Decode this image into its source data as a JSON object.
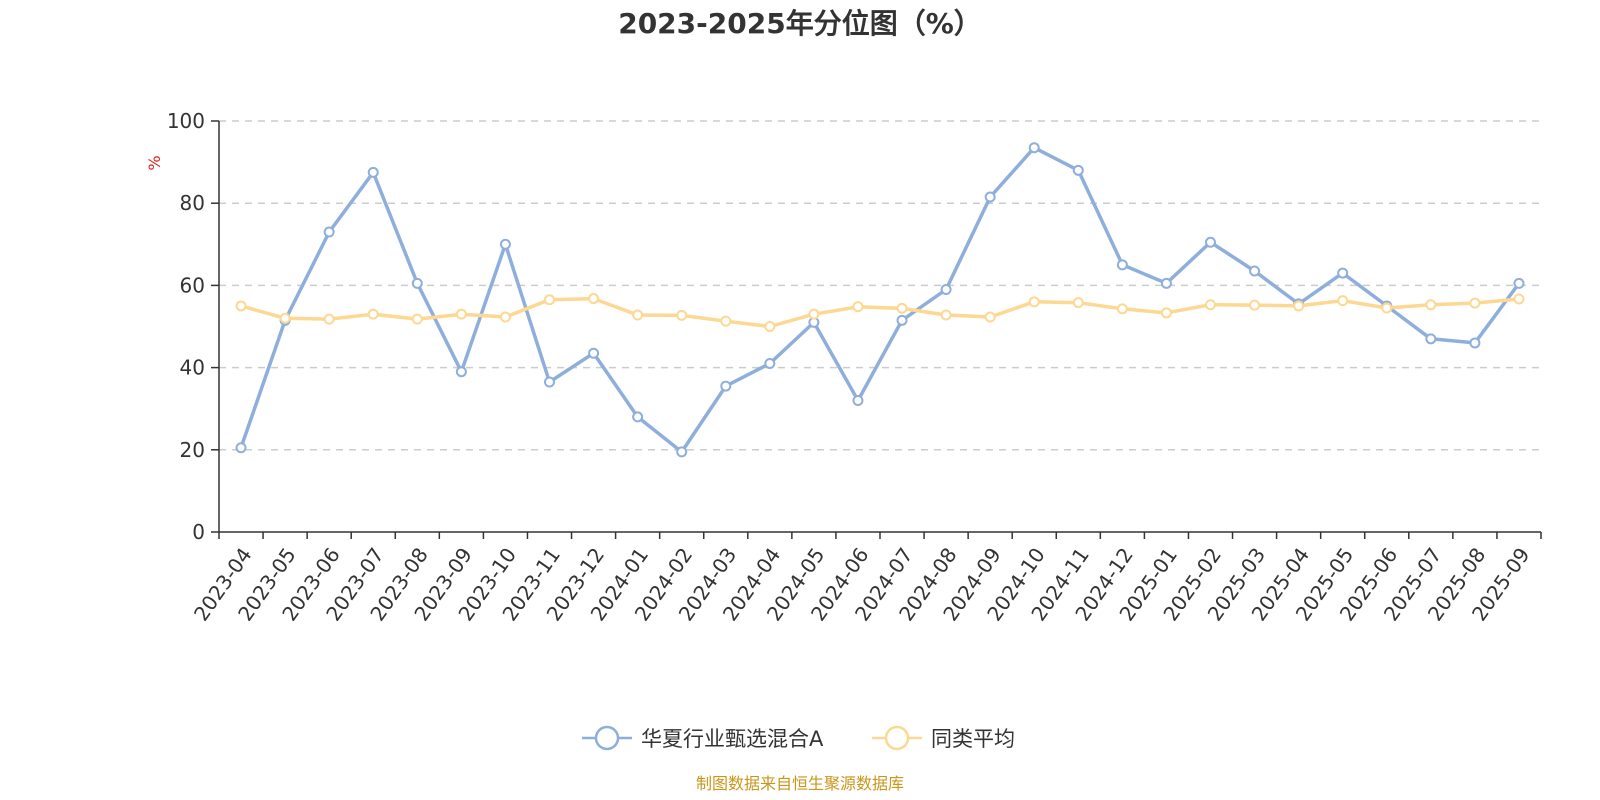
{
  "chart_data": {
    "type": "line",
    "title": "2023-2025年分位图（%）",
    "ylabel": "%",
    "xlabel": "",
    "ylim": [
      0,
      100
    ],
    "yticks": [
      0,
      20,
      40,
      60,
      80,
      100
    ],
    "grid": true,
    "legend_position": "bottom-center",
    "categories": [
      "2023-04",
      "2023-05",
      "2023-06",
      "2023-07",
      "2023-08",
      "2023-09",
      "2023-10",
      "2023-11",
      "2023-12",
      "2024-01",
      "2024-02",
      "2024-03",
      "2024-04",
      "2024-05",
      "2024-06",
      "2024-07",
      "2024-08",
      "2024-09",
      "2024-10",
      "2024-11",
      "2024-12",
      "2025-01",
      "2025-02",
      "2025-03",
      "2025-04",
      "2025-05",
      "2025-06",
      "2025-07",
      "2025-08",
      "2025-09"
    ],
    "series": [
      {
        "name": "华夏行业甄选混合A",
        "color": "#8eaedb",
        "values": [
          20.5,
          51.5,
          73,
          87.5,
          60.5,
          39,
          70,
          36.5,
          43.5,
          28,
          19.5,
          35.5,
          41,
          51,
          32,
          51.5,
          59,
          81.5,
          93.5,
          88,
          65,
          60.5,
          70.5,
          63.5,
          55.5,
          63,
          55,
          47,
          46,
          60.5
        ]
      },
      {
        "name": "同类平均",
        "color": "#fcd892",
        "values": [
          55,
          52,
          51.8,
          53,
          51.8,
          53,
          52.3,
          56.5,
          56.8,
          52.8,
          52.7,
          51.3,
          50,
          53,
          54.8,
          54.4,
          52.8,
          52.3,
          56,
          55.8,
          54.3,
          53.3,
          55.3,
          55.2,
          55,
          56.3,
          54.5,
          55.3,
          55.7,
          56.7
        ]
      }
    ]
  },
  "source_note": "制图数据来自恒生聚源数据库"
}
